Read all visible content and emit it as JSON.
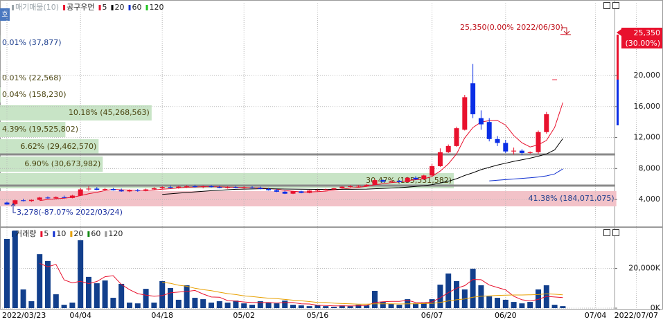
{
  "side_button": "호",
  "chart_data": [
    {
      "type": "candlestick",
      "legend": [
        {
          "name": "매기매물(10)",
          "color": "#9aa4aa"
        },
        {
          "name": "공구우먼",
          "color": "#e8112d"
        },
        {
          "name": "5",
          "color": "#e8112d"
        },
        {
          "name": "20",
          "color": "#000000"
        },
        {
          "name": "60",
          "color": "#1030d0"
        },
        {
          "name": "120",
          "color": "#22c322"
        }
      ],
      "up_color": "#e8112d",
      "down_color": "#0a2ee6",
      "ylim": [
        700,
        29300
      ],
      "yticks": [
        {
          "value": 4000,
          "label": "4,000"
        },
        {
          "value": 8000,
          "label": "8,000"
        },
        {
          "value": 12000,
          "label": "12,000"
        },
        {
          "value": 16000,
          "label": "16,000"
        },
        {
          "value": 20000,
          "label": "20,000"
        }
      ],
      "grid": true,
      "open": [
        3600,
        3400,
        3900,
        3800,
        3950,
        4250,
        4150,
        4300,
        4200,
        4500,
        5300,
        5400,
        5250,
        5350,
        5200,
        5050,
        5200,
        5100,
        5300,
        5450,
        5600,
        5500,
        5650,
        5700,
        5600,
        5700,
        5600,
        5500,
        5600,
        5500,
        5550,
        5500,
        5350,
        5200,
        5000,
        4750,
        5050,
        4850,
        5150,
        5250,
        5300,
        5450,
        5650,
        5700,
        5750,
        5900,
        6500,
        6300,
        6400,
        6250,
        6800,
        6600,
        7100,
        8300,
        10100,
        10900,
        13000,
        19000,
        14500,
        14000,
        11800,
        11300,
        10200,
        10300,
        10000,
        10100,
        12700,
        19500,
        25350,
        null,
        null,
        null,
        null,
        null,
        null,
        null,
        null,
        null
      ],
      "high": [
        3700,
        4000,
        4100,
        4000,
        4350,
        4400,
        4400,
        4500,
        4600,
        5500,
        5700,
        5600,
        5500,
        5500,
        5400,
        5300,
        5350,
        5400,
        5600,
        5700,
        5800,
        5750,
        5850,
        5900,
        5800,
        5850,
        5750,
        5700,
        5750,
        5700,
        5700,
        5650,
        5500,
        5350,
        5150,
        5100,
        5150,
        5200,
        5300,
        5400,
        5500,
        5700,
        5850,
        5850,
        6000,
        6700,
        6600,
        6500,
        6500,
        6900,
        7000,
        7200,
        8600,
        10600,
        11100,
        13400,
        17500,
        21500,
        15500,
        14500,
        12200,
        11700,
        10700,
        10500,
        10200,
        12900,
        15300,
        19500,
        25350,
        null,
        null,
        null,
        null,
        null,
        null,
        null,
        null,
        null
      ],
      "low": [
        3320,
        3278,
        3750,
        3700,
        3900,
        4100,
        4050,
        4150,
        4150,
        4450,
        5100,
        5200,
        5100,
        5150,
        5000,
        4950,
        5000,
        5050,
        5200,
        5300,
        5450,
        5400,
        5500,
        5550,
        5450,
        5550,
        5450,
        5400,
        5450,
        5400,
        5450,
        5300,
        5150,
        4950,
        4700,
        4700,
        4800,
        4800,
        5050,
        5150,
        5200,
        5400,
        5550,
        5600,
        5650,
        5850,
        6200,
        6150,
        6200,
        6200,
        6500,
        6550,
        7000,
        8200,
        10000,
        10800,
        12900,
        14500,
        13000,
        11500,
        10900,
        10000,
        9800,
        9700,
        9900,
        9900,
        12500,
        19500,
        25350,
        null,
        null,
        null,
        null,
        null,
        null,
        null,
        null,
        null
      ],
      "close": [
        3350,
        3900,
        3800,
        3950,
        4250,
        4150,
        4300,
        4200,
        4500,
        5300,
        5400,
        5250,
        5350,
        5200,
        5050,
        5200,
        5100,
        5300,
        5450,
        5600,
        5500,
        5650,
        5700,
        5600,
        5700,
        5600,
        5500,
        5600,
        5500,
        5550,
        5500,
        5350,
        5200,
        5000,
        4750,
        5050,
        4850,
        5150,
        5250,
        5300,
        5450,
        5650,
        5700,
        5750,
        5900,
        6500,
        6300,
        6400,
        6250,
        6800,
        6600,
        7100,
        8300,
        10100,
        10900,
        13200,
        17200,
        15000,
        13700,
        11800,
        11300,
        10200,
        10300,
        10000,
        10100,
        12700,
        15000,
        19500,
        25350,
        null,
        null,
        null,
        null,
        null,
        null,
        null,
        null,
        null
      ],
      "series": [
        {
          "color": "#e8112d",
          "values": [
            null,
            null,
            null,
            null,
            3850,
            4010,
            4090,
            4170,
            4280,
            4500,
            4740,
            4930,
            5160,
            5300,
            5250,
            5210,
            5180,
            5170,
            5220,
            5330,
            5390,
            5500,
            5580,
            5610,
            5630,
            5650,
            5620,
            5600,
            5580,
            5550,
            5530,
            5500,
            5420,
            5320,
            5160,
            5070,
            4970,
            4960,
            5010,
            5080,
            5210,
            5330,
            5470,
            5570,
            5690,
            5900,
            6030,
            6170,
            6270,
            6450,
            6550,
            6670,
            6970,
            7660,
            8600,
            9880,
            11940,
            13280,
            14000,
            14180,
            14200,
            13600,
            12260,
            11320,
            10780,
            11060,
            11620,
            13300,
            16500,
            null,
            null,
            null,
            null,
            null,
            null,
            null,
            null,
            null
          ]
        },
        {
          "color": "#000000",
          "values": [
            null,
            null,
            null,
            null,
            null,
            null,
            null,
            null,
            null,
            null,
            null,
            null,
            null,
            null,
            null,
            null,
            null,
            null,
            null,
            4650,
            4730,
            4820,
            4900,
            4980,
            5060,
            5130,
            5200,
            5260,
            5310,
            5340,
            5360,
            5380,
            5380,
            5370,
            5350,
            5340,
            5320,
            5310,
            5300,
            5300,
            5300,
            5310,
            5310,
            5320,
            5340,
            5380,
            5430,
            5480,
            5530,
            5600,
            5680,
            5770,
            5920,
            6130,
            6360,
            6680,
            7100,
            7450,
            7850,
            8150,
            8440,
            8680,
            8920,
            9130,
            9330,
            9580,
            9880,
            10400,
            11850,
            null,
            null,
            null,
            null,
            null,
            null,
            null,
            null,
            null
          ]
        },
        {
          "color": "#1030d0",
          "values": [
            null,
            null,
            null,
            null,
            null,
            null,
            null,
            null,
            null,
            null,
            null,
            null,
            null,
            null,
            null,
            null,
            null,
            null,
            null,
            null,
            null,
            null,
            null,
            null,
            null,
            null,
            null,
            null,
            null,
            null,
            null,
            null,
            null,
            null,
            null,
            null,
            null,
            null,
            null,
            null,
            null,
            null,
            null,
            null,
            null,
            null,
            null,
            null,
            null,
            null,
            null,
            null,
            null,
            null,
            null,
            null,
            null,
            null,
            null,
            6400,
            6480,
            6560,
            6640,
            6720,
            6800,
            6900,
            7050,
            7300,
            7950,
            null,
            null,
            null,
            null,
            null,
            null,
            null,
            null,
            null
          ]
        }
      ],
      "volume_profile": {
        "values": [
          0.01,
          0.01,
          0.04,
          10.18,
          4.39,
          6.62,
          6.9,
          30.47,
          41.38
        ],
        "value_labels": [
          "0.01% (37,877)",
          "0.01% (22,568)",
          "0.04% (158,230)",
          "10.18% (45,268,563)",
          "4.39% (19,525,802)",
          "6.62% (29,462,570)",
          "6.90% (30,673,982)",
          "30.47% (135,531,582)",
          "41.38% (184,071,075)"
        ]
      },
      "annotations": [
        "25,350(0.00% 2022/06/30)",
        "3,278(-87.07% 2022/03/24)"
      ],
      "price_tag": [
        "25,350",
        "(30.00%)"
      ]
    },
    {
      "type": "bar",
      "legend": [
        {
          "name": "거래량",
          "color": "#123f8c"
        },
        {
          "name": "5",
          "color": "#e8112d"
        },
        {
          "name": "10",
          "color": "#1030d0"
        },
        {
          "name": "20",
          "color": "#e8a000"
        },
        {
          "name": "60",
          "color": "#168a16"
        },
        {
          "name": "120",
          "color": "#999999"
        }
      ],
      "color": "#123f8c",
      "ylim": [
        0,
        40000
      ],
      "yticks": [
        {
          "value": 0,
          "label": "0K"
        },
        {
          "value": 20000,
          "label": "20,000K"
        }
      ],
      "grid": true,
      "categories": [
        "2022/03/23",
        null,
        null,
        null,
        null,
        null,
        null,
        null,
        null,
        "04/04",
        null,
        null,
        null,
        null,
        null,
        null,
        null,
        null,
        null,
        "04/18",
        null,
        null,
        null,
        null,
        null,
        null,
        null,
        null,
        null,
        "05/02",
        null,
        null,
        null,
        null,
        null,
        null,
        null,
        null,
        "05/16",
        null,
        null,
        null,
        null,
        null,
        null,
        null,
        null,
        null,
        null,
        null,
        null,
        null,
        "06/07",
        null,
        null,
        null,
        null,
        null,
        null,
        null,
        null,
        "06/20",
        null,
        null,
        null,
        null,
        null,
        null,
        null,
        null,
        null,
        null,
        "07/04",
        null,
        null,
        null,
        null,
        "2022/07/07"
      ],
      "values": [
        34800,
        39000,
        9400,
        3500,
        27100,
        23700,
        7000,
        1700,
        2800,
        34100,
        15700,
        12500,
        13900,
        5200,
        12200,
        2800,
        2400,
        9700,
        2800,
        13600,
        10100,
        4200,
        11500,
        5200,
        4500,
        2800,
        3500,
        2800,
        3800,
        2400,
        1700,
        3500,
        2800,
        2400,
        3800,
        1700,
        1400,
        1000,
        1400,
        1000,
        700,
        1400,
        1000,
        1700,
        1400,
        8700,
        3100,
        2100,
        1700,
        4500,
        2400,
        2800,
        4500,
        11800,
        17400,
        13600,
        9400,
        19800,
        11500,
        5900,
        5200,
        4200,
        3100,
        2400,
        3100,
        9400,
        11500,
        1700,
        1000,
        null,
        null,
        null,
        null,
        null,
        null,
        null,
        null,
        null
      ],
      "series": [
        {
          "color": "#e8112d",
          "values": [
            null,
            null,
            null,
            null,
            22500,
            20800,
            22000,
            14200,
            12700,
            13500,
            12300,
            13400,
            15800,
            16300,
            11900,
            9300,
            7300,
            6500,
            6000,
            6300,
            7700,
            8100,
            8400,
            8900,
            7100,
            5600,
            5500,
            3800,
            3500,
            3100,
            2800,
            2800,
            2800,
            2600,
            2800,
            2800,
            2200,
            2100,
            1500,
            1300,
            1100,
            1100,
            1100,
            1200,
            1400,
            2800,
            3200,
            3400,
            3400,
            4000,
            2800,
            2700,
            3100,
            5200,
            7800,
            10000,
            11300,
            14400,
            14300,
            11600,
            10400,
            9200,
            6000,
            4200,
            3600,
            4400,
            5900,
            5600,
            5300,
            null,
            null,
            null,
            null,
            null,
            null,
            null,
            null,
            null
          ]
        },
        {
          "color": "#e8a000",
          "values": [
            null,
            null,
            null,
            null,
            null,
            null,
            null,
            null,
            null,
            null,
            null,
            null,
            null,
            null,
            null,
            null,
            null,
            null,
            null,
            13000,
            12500,
            11500,
            11000,
            10000,
            9300,
            8800,
            8000,
            7300,
            6800,
            6200,
            5800,
            5400,
            5000,
            4800,
            4400,
            4000,
            3700,
            3300,
            2900,
            2800,
            2500,
            2300,
            2200,
            2000,
            2000,
            2200,
            2200,
            2200,
            2100,
            2200,
            2200,
            2300,
            2400,
            2900,
            3600,
            4200,
            4600,
            5500,
            6000,
            6200,
            6400,
            6500,
            6600,
            6600,
            6700,
            6800,
            7200,
            7000,
            6700,
            null,
            null,
            null,
            null,
            null,
            null,
            null,
            null,
            null
          ]
        }
      ]
    }
  ]
}
